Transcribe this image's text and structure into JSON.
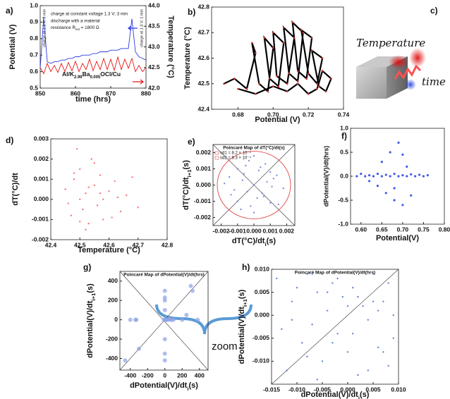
{
  "chart_data": [
    {
      "type": "line",
      "panel_label": "a)",
      "xlabel": "time (hrs)",
      "ylabel": "Potential (V)",
      "y2label": "Temperature (°C)",
      "xlim": [
        850,
        880
      ],
      "xticks": [
        850,
        860,
        870,
        880
      ],
      "ylim": [
        0.5,
        1.0
      ],
      "yticks": [
        0.5,
        0.6,
        0.7,
        0.8,
        0.9,
        {
          "value": 1,
          "label": "1.0"
        }
      ],
      "y2lim": [
        42,
        44
      ],
      "y2ticks": [
        {
          "value": 42,
          "label": "42.0"
        },
        42.5,
        {
          "value": 43,
          "label": "43.0"
        },
        43.5,
        {
          "value": 44,
          "label": "44.0"
        }
      ],
      "annotations": [
        "charge at constant voltage 1.3 V; 3 min",
        "discharge with a material",
        [
          "resistance R",
          "ext",
          " = 1800 Ω"
        ],
        [
          "Al/K",
          "2.99",
          "Ba",
          "0.005",
          "OCl/Cu"
        ],
        "charge at 1.3 V; 3 min",
        "charge at 1.3 V; 1 min"
      ],
      "x": [
        850,
        851,
        852,
        853,
        854,
        855,
        856,
        857,
        858,
        859,
        860,
        861,
        862,
        863,
        864,
        865,
        866,
        867,
        868,
        869,
        870,
        871,
        872,
        873,
        874,
        875,
        876,
        877,
        878,
        879,
        880
      ],
      "series": [
        {
          "color": "#2b3be0",
          "values": [
            0.62,
            0.93,
            0.66,
            0.65,
            0.66,
            0.66,
            0.67,
            0.67,
            0.68,
            0.68,
            0.69,
            0.69,
            0.7,
            0.7,
            0.7,
            0.71,
            0.71,
            0.72,
            0.72,
            0.72,
            0.73,
            0.73,
            0.73,
            0.74,
            0.74,
            0.74,
            0.92,
            0.72,
            0.69,
            0.68,
            0.67
          ]
        },
        {
          "color": "#e81818",
          "axis": "y2",
          "values": [
            42.5,
            42.35,
            42.6,
            42.4,
            42.55,
            42.38,
            42.6,
            42.4,
            42.62,
            42.42,
            42.65,
            42.4,
            42.6,
            42.45,
            42.7,
            42.42,
            42.65,
            42.45,
            42.72,
            42.45,
            42.7,
            42.43,
            42.75,
            42.45,
            42.7,
            42.48,
            42.72,
            42.4,
            42.55,
            42.4,
            42.5
          ]
        }
      ]
    },
    {
      "type": "line",
      "panel_label": "b)",
      "xlabel": "Potential (V)",
      "ylabel": "Temperature (°C)",
      "xlim": [
        0.665,
        0.74
      ],
      "xticks": [
        0.68,
        {
          "value": 0.7,
          "label": "0.70"
        },
        0.72,
        0.74
      ],
      "ylim": [
        42.4,
        42.8
      ],
      "yticks": [
        42.4,
        42.5,
        42.6,
        42.7,
        42.8
      ],
      "x": [
        0.672,
        0.678,
        0.685,
        0.69,
        0.688,
        0.692,
        0.697,
        0.7,
        0.695,
        0.698,
        0.703,
        0.706,
        0.7,
        0.702,
        0.708,
        0.712,
        0.706,
        0.709,
        0.714,
        0.717,
        0.711,
        0.714,
        0.719,
        0.722,
        0.716,
        0.72,
        0.725,
        0.728,
        0.722,
        0.726,
        0.73,
        0.733,
        0.728,
        0.725,
        0.72,
        0.714,
        0.708,
        0.7,
        0.69,
        0.68
      ],
      "series": [
        {
          "color": "#000000",
          "marker_color": "#d03030",
          "values": [
            42.5,
            42.52,
            42.48,
            42.62,
            42.66,
            42.5,
            42.47,
            42.64,
            42.68,
            42.52,
            42.49,
            42.66,
            42.7,
            42.53,
            42.5,
            42.68,
            42.72,
            42.54,
            42.51,
            42.7,
            42.74,
            42.55,
            42.52,
            42.68,
            42.71,
            42.54,
            42.5,
            42.6,
            42.63,
            42.49,
            42.47,
            42.52,
            42.55,
            42.48,
            42.46,
            42.5,
            42.47,
            42.49,
            42.46,
            42.48
          ]
        }
      ]
    },
    {
      "type": "scatter",
      "panel_label": "d)",
      "xlabel": "Temperature (°C)",
      "ylabel": "dT(°C)/dt",
      "xlim": [
        42.4,
        42.8
      ],
      "xticks": [
        42.4,
        42.5,
        42.6,
        42.7,
        42.8
      ],
      "ylim": [
        -0.002,
        0.003
      ],
      "yticks": [
        -0.002,
        -0.001,
        {
          "value": 0,
          "label": "0.000"
        },
        0.001,
        0.002,
        0.003
      ],
      "x": [
        42.45,
        42.47,
        42.48,
        42.5,
        42.5,
        42.51,
        42.52,
        42.53,
        42.54,
        42.55,
        42.56,
        42.57,
        42.58,
        42.6,
        42.62,
        42.64,
        42.66,
        42.68,
        42.7,
        42.49,
        42.52,
        42.55,
        42.58,
        42.46,
        42.53,
        42.61,
        42.5,
        42.57,
        42.63,
        42.48
      ],
      "series": [
        {
          "color": "#f06060",
          "values": [
            0.0005,
            -0.0008,
            0.001,
            0,
            0.0015,
            -0.0005,
            0.0003,
            -0.0012,
            0.002,
            0.0007,
            -0.0003,
            0.0012,
            -0.001,
            0.0004,
            0.0009,
            -0.0006,
            0.0002,
            0.0011,
            -0.0004,
            0.0025,
            -0.0015,
            0.0018,
            0,
            -0.0002,
            0.0006,
            -0.0009,
            -0.0011,
            0.0003,
            0.0001,
            0.0013
          ]
        }
      ]
    },
    {
      "type": "scatter",
      "panel_label": "e)",
      "title": "Poincaré Map of dT(°C)/dt(s)",
      "legend": [
        "sd1 = 8.2 × 10⁻⁴",
        "sd2 = 9.3 × 10⁻⁴"
      ],
      "xlabel": [
        "dT(°C)/dt",
        "i",
        "(s)"
      ],
      "ylabel": [
        "dT(°C)/dt",
        "i+1",
        "(s)"
      ],
      "xlim": [
        -0.0025,
        0.0025
      ],
      "xticks": [
        -0.002,
        -0.001,
        {
          "value": 0,
          "label": "0.000"
        },
        0.001,
        0.002
      ],
      "ylim": [
        -0.0025,
        0.0025
      ],
      "yticks": [
        -0.002,
        -0.001,
        {
          "value": 0,
          "label": "0.000"
        },
        0.001,
        0.002
      ],
      "x": [
        -0.0015,
        -0.001,
        -0.0005,
        0,
        0.0005,
        0.001,
        0.0015,
        -0.0012,
        -0.0003,
        0.0008,
        -0.0008,
        0.0002,
        0.0012,
        -0.0018,
        0.0018,
        -0.0006,
        0.0006,
        0,
        -0.001,
        0.001,
        -0.0004,
        0.0004,
        -0.0014,
        0.0014,
        0,
        -0.0007,
        0.0007,
        -0.0002,
        0.0003,
        0.0011
      ],
      "series": [
        {
          "color": "#6a7fd8",
          "values": [
            0.0005,
            -0.001,
            0.0012,
            0,
            -0.0005,
            0.0008,
            -0.0012,
            -0.0003,
            0.0015,
            0.0002,
            -0.0015,
            -0.0008,
            0.0004,
            0.0001,
            -0.0002,
            0.0007,
            -0.0007,
            0.0018,
            0.001,
            -0.0011,
            -0.0004,
            0.0011,
            -0.0006,
            0.0006,
            -0.0017,
            0.0003,
            0.0013,
            -0.0013,
            0.0009,
            -0.0001
          ]
        }
      ]
    },
    {
      "type": "scatter",
      "panel_label": "f)",
      "xlabel": "Potential(V)",
      "ylabel": "dPotential(V)/dt(hrs)",
      "xlim": [
        0.575,
        0.8
      ],
      "xticks": [
        {
          "value": 0.6,
          "label": "0.60"
        },
        0.65,
        {
          "value": 0.7,
          "label": "0.70"
        },
        0.75,
        {
          "value": 0.8,
          "label": "0.80"
        }
      ],
      "ylim": [
        -1,
        1
      ],
      "yticks": [
        {
          "value": -1,
          "label": "-1.0"
        },
        -0.5,
        {
          "value": 0,
          "label": "0.0"
        },
        0.5,
        {
          "value": 1,
          "label": "1.0"
        }
      ],
      "x": [
        0.59,
        0.6,
        0.61,
        0.62,
        0.63,
        0.64,
        0.65,
        0.66,
        0.67,
        0.68,
        0.69,
        0.7,
        0.71,
        0.72,
        0.73,
        0.74,
        0.75,
        0.76,
        0.62,
        0.64,
        0.66,
        0.68,
        0.7,
        0.72,
        0.65,
        0.67,
        0.69,
        0.71,
        0.68,
        0.7
      ],
      "series": [
        {
          "color": "#1f3fe0",
          "values": [
            0,
            0.05,
            0,
            0.02,
            0,
            0.05,
            0,
            0.03,
            0,
            0.05,
            0,
            0.02,
            0,
            0.04,
            0,
            0.03,
            0,
            0.02,
            -0.1,
            -0.2,
            -0.35,
            -0.5,
            -0.6,
            -0.4,
            0.3,
            0.5,
            0.7,
            0.2,
            -0.25,
            0.45
          ]
        }
      ]
    },
    {
      "type": "scatter",
      "panel_label": "g)",
      "title": "Poincaré Map of dPotential(V)/dt(hrs)",
      "annotations": [
        "zoom"
      ],
      "xlabel": [
        "dPotential(V)/dt",
        "i",
        "(s)"
      ],
      "ylabel": [
        "dPotential(V)/dt",
        "i+1",
        "(s)"
      ],
      "xlim": [
        -520,
        500
      ],
      "xticks": [
        -400,
        -200,
        0,
        200,
        400
      ],
      "ylim": [
        -520,
        500
      ],
      "yticks": [
        -400,
        -200,
        0,
        200,
        400
      ],
      "x": [
        -460,
        -400,
        -330,
        -300,
        -340,
        0,
        0,
        0,
        0,
        0,
        0,
        10,
        20,
        30,
        50,
        60,
        80,
        100,
        200,
        250,
        300,
        320,
        380,
        0,
        0,
        0,
        15,
        -10
      ],
      "series": [
        {
          "color": "#8ea3e6",
          "values": [
            -420,
            0,
            0,
            -300,
            0,
            300,
            230,
            200,
            -350,
            -420,
            100,
            0,
            0,
            0,
            10,
            0,
            0,
            0,
            0,
            50,
            350,
            300,
            0,
            0,
            -200,
            0,
            5,
            0
          ]
        }
      ]
    },
    {
      "type": "scatter",
      "panel_label": "h)",
      "title": "Poincaré Map of dPotential(V)/dt(hrs)",
      "xlabel": [
        "dPotential(V)/dt",
        "i",
        "(s)"
      ],
      "ylabel": [
        "dPotential(V)/dt",
        "i+1",
        "(s)"
      ],
      "xlim": [
        -0.015,
        0.01
      ],
      "xticks": [
        -0.015,
        {
          "value": -0.01,
          "label": "-0.010"
        },
        -0.005,
        {
          "value": 0,
          "label": "0.000"
        },
        0.005,
        {
          "value": 0.01,
          "label": "0.010"
        }
      ],
      "ylim": [
        -0.015,
        0.01
      ],
      "yticks": [
        {
          "value": -0.01,
          "label": "-0.010"
        },
        -0.005,
        {
          "value": 0,
          "label": "0.000"
        },
        0.005,
        {
          "value": 0.01,
          "label": "0.010"
        }
      ],
      "x": [
        -0.014,
        -0.012,
        -0.011,
        -0.009,
        -0.008,
        -0.007,
        -0.006,
        -0.005,
        -0.004,
        -0.003,
        -0.002,
        -0.001,
        0,
        0.001,
        0.002,
        0.003,
        0.004,
        0.005,
        0.006,
        0.007,
        0.008,
        0.009,
        -0.013,
        -0.01,
        -0.006,
        -0.002,
        0.002,
        0.006,
        0.009,
        -0.008,
        -0.004,
        0,
        0.004,
        0.008,
        -0.011,
        -0.003,
        0.005,
        0.001,
        -0.007,
        0.007
      ],
      "series": [
        {
          "color": "#4a6fd0",
          "values": [
            0.008,
            -0.012,
            0.003,
            -0.006,
            0.009,
            -0.002,
            0.005,
            -0.01,
            0.001,
            0.007,
            -0.004,
            0.004,
            -0.008,
            0.006,
            -0.013,
            0.002,
            -0.001,
            0.009,
            -0.007,
            0.003,
            -0.011,
            0,
            -0.003,
            0.006,
            -0.014,
            0.008,
            0.004,
            0.001,
            -0.005,
            -0.009,
            0.005,
            0.002,
            -0.012,
            0.007,
            -0.001,
            -0.006,
            0.003,
            -0.004,
            0.009,
            -0.008
          ]
        }
      ]
    }
  ],
  "diagram": {
    "panel_label": "c)",
    "labels": [
      "Temperature",
      "time"
    ]
  }
}
